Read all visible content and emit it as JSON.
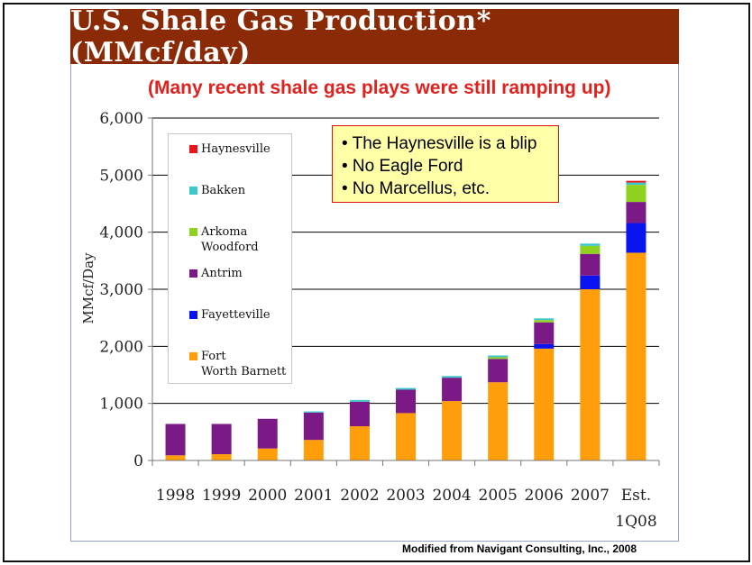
{
  "title": "U.S. Shale Gas Production* (MMcf/day)",
  "subtitle": "(Many recent shale gas plays were still ramping up)",
  "source": "Modified from Navigant Consulting, Inc., 2008",
  "callout": {
    "lines": [
      "• The Haynesville is a blip",
      "• No Eagle Ford",
      "• No Marcellus, etc."
    ]
  },
  "colors": {
    "title_bg": "#8b2a06",
    "subtitle": "#e2211c",
    "callout_bg": "#ffffa8"
  },
  "chart_data": {
    "type": "bar",
    "stacked": true,
    "ylabel": "MMcf/Day",
    "xlabel": "",
    "ylim": [
      0,
      6000
    ],
    "yticks": [
      "0",
      "1,000",
      "2,000",
      "3,000",
      "4,000",
      "5,000",
      "6,000"
    ],
    "ytick_values": [
      0,
      1000,
      2000,
      3000,
      4000,
      5000,
      6000
    ],
    "grid": true,
    "legend_placement": "upper-left",
    "categories": [
      "1998",
      "1999",
      "2000",
      "2001",
      "2002",
      "2003",
      "2004",
      "2005",
      "2006",
      "2007",
      "Est. 1Q08"
    ],
    "series": [
      {
        "name": "Fort Worth Barnett",
        "color": "#ff9e0a",
        "values": [
          90,
          110,
          210,
          360,
          600,
          830,
          1040,
          1370,
          1960,
          3000,
          3640
        ]
      },
      {
        "name": "Fayetteville",
        "color": "#0a14f0",
        "values": [
          0,
          0,
          0,
          0,
          0,
          0,
          0,
          0,
          80,
          240,
          520
        ]
      },
      {
        "name": "Antrim",
        "color": "#7b1a86",
        "values": [
          550,
          530,
          520,
          480,
          430,
          410,
          410,
          410,
          380,
          380,
          370
        ]
      },
      {
        "name": "Arkoma Woodford",
        "color": "#8ed11f",
        "values": [
          0,
          0,
          0,
          0,
          0,
          0,
          0,
          30,
          40,
          140,
          300
        ]
      },
      {
        "name": "Bakken",
        "color": "#3cc8c8",
        "values": [
          0,
          0,
          0,
          20,
          30,
          30,
          30,
          30,
          30,
          40,
          40
        ]
      },
      {
        "name": "Haynesville",
        "color": "#e8141c",
        "values": [
          0,
          0,
          0,
          0,
          0,
          0,
          0,
          0,
          0,
          0,
          30
        ]
      }
    ]
  }
}
